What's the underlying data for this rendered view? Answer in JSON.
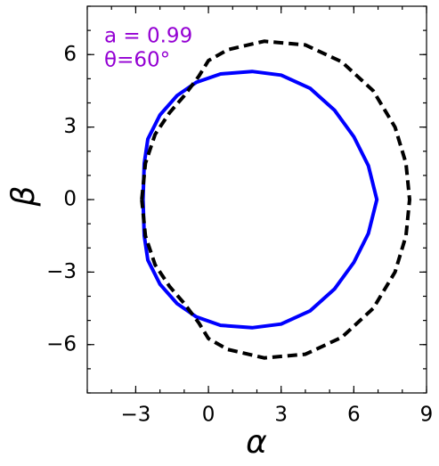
{
  "chart_data": {
    "type": "line",
    "xlabel": "α",
    "ylabel": "β",
    "annotations": [
      "a = 0.99",
      "θ=60°"
    ],
    "annotation_color": "#9400d3",
    "xlim": [
      -5,
      9
    ],
    "ylim": [
      -8,
      8
    ],
    "xticks": [
      {
        "value": -3,
        "label": "−3"
      },
      0,
      3,
      6,
      9
    ],
    "yticks": [
      {
        "value": -6,
        "label": "−6"
      },
      {
        "value": -3,
        "label": "−3"
      },
      0,
      3,
      6
    ],
    "series": [
      {
        "color": "#0000ff",
        "dashed": false,
        "x": [
          -2.7,
          -2.65,
          -2.5,
          -2.0,
          -1.3,
          -0.5,
          0.5,
          1.8,
          3.0,
          4.2,
          5.2,
          6.0,
          6.6,
          6.95,
          6.6,
          6.0,
          5.2,
          4.2,
          3.0,
          1.8,
          0.5,
          -0.5,
          -1.3,
          -2.0,
          -2.5,
          -2.65,
          -2.7
        ],
        "y": [
          0,
          1.5,
          2.5,
          3.5,
          4.3,
          4.85,
          5.2,
          5.3,
          5.15,
          4.6,
          3.7,
          2.6,
          1.4,
          0,
          -1.4,
          -2.6,
          -3.7,
          -4.6,
          -5.15,
          -5.3,
          -5.2,
          -4.85,
          -4.3,
          -3.5,
          -2.5,
          -1.5,
          0
        ]
      },
      {
        "color": "#000000",
        "dashed": true,
        "x": [
          -2.75,
          -2.6,
          -2.2,
          -1.6,
          -1.0,
          -0.4,
          0,
          0.8,
          2.3,
          4.0,
          5.5,
          6.8,
          7.7,
          8.15,
          8.3,
          8.15,
          7.7,
          6.8,
          5.5,
          4.0,
          2.3,
          0.8,
          0,
          -0.4,
          -1.0,
          -1.6,
          -2.2,
          -2.6,
          -2.75
        ],
        "y": [
          0,
          1.5,
          2.7,
          3.6,
          4.3,
          5.1,
          5.75,
          6.2,
          6.55,
          6.4,
          5.7,
          4.5,
          3.0,
          1.5,
          0,
          -1.5,
          -3.0,
          -4.5,
          -5.7,
          -6.4,
          -6.55,
          -6.2,
          -5.75,
          -5.1,
          -4.3,
          -3.6,
          -2.7,
          -1.5,
          0
        ]
      }
    ]
  }
}
